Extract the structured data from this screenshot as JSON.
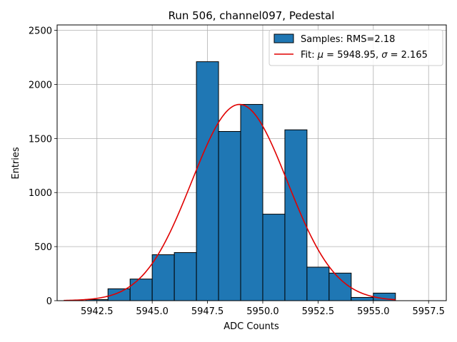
{
  "chart_data": {
    "type": "bar",
    "title": "Run 506, channel097, Pedestal",
    "xlabel": "ADC Counts",
    "ylabel": "Entries",
    "xlim": [
      5940.7,
      5958.3
    ],
    "ylim": [
      0,
      2550
    ],
    "xticks": [
      5942.5,
      5945.0,
      5947.5,
      5950.0,
      5952.5,
      5955.0,
      5957.5
    ],
    "xtick_labels": [
      "5942.5",
      "5945.0",
      "5947.5",
      "5950.0",
      "5952.5",
      "5955.0",
      "5957.5"
    ],
    "yticks": [
      0,
      500,
      1000,
      1500,
      2000,
      2500
    ],
    "ytick_labels": [
      "0",
      "500",
      "1000",
      "1500",
      "2000",
      "2500"
    ],
    "grid": true,
    "legend_position": "top-right",
    "histogram": {
      "name": "Samples: RMS=2.18",
      "color": "#1f77b4",
      "edge_color": "#000000",
      "bin_edges": [
        5942,
        5943,
        5944,
        5945,
        5946,
        5947,
        5948,
        5949,
        5950,
        5951,
        5952,
        5953,
        5954,
        5955,
        5956
      ],
      "counts": [
        10,
        110,
        200,
        425,
        445,
        2210,
        1565,
        1815,
        800,
        1580,
        310,
        255,
        30,
        70
      ]
    },
    "fit": {
      "name": "Fit: μ = 5948.95, σ = 2.165",
      "name_prefix": "Fit: ",
      "name_mu_symbol": "μ",
      "name_mu_rest": " = 5948.95, ",
      "name_sigma_symbol": "σ",
      "name_sigma_rest": " = 2.165",
      "color": "#e00000",
      "mu": 5948.95,
      "sigma": 2.165,
      "amplitude": 1815,
      "x_range": [
        5941,
        5956
      ]
    }
  }
}
